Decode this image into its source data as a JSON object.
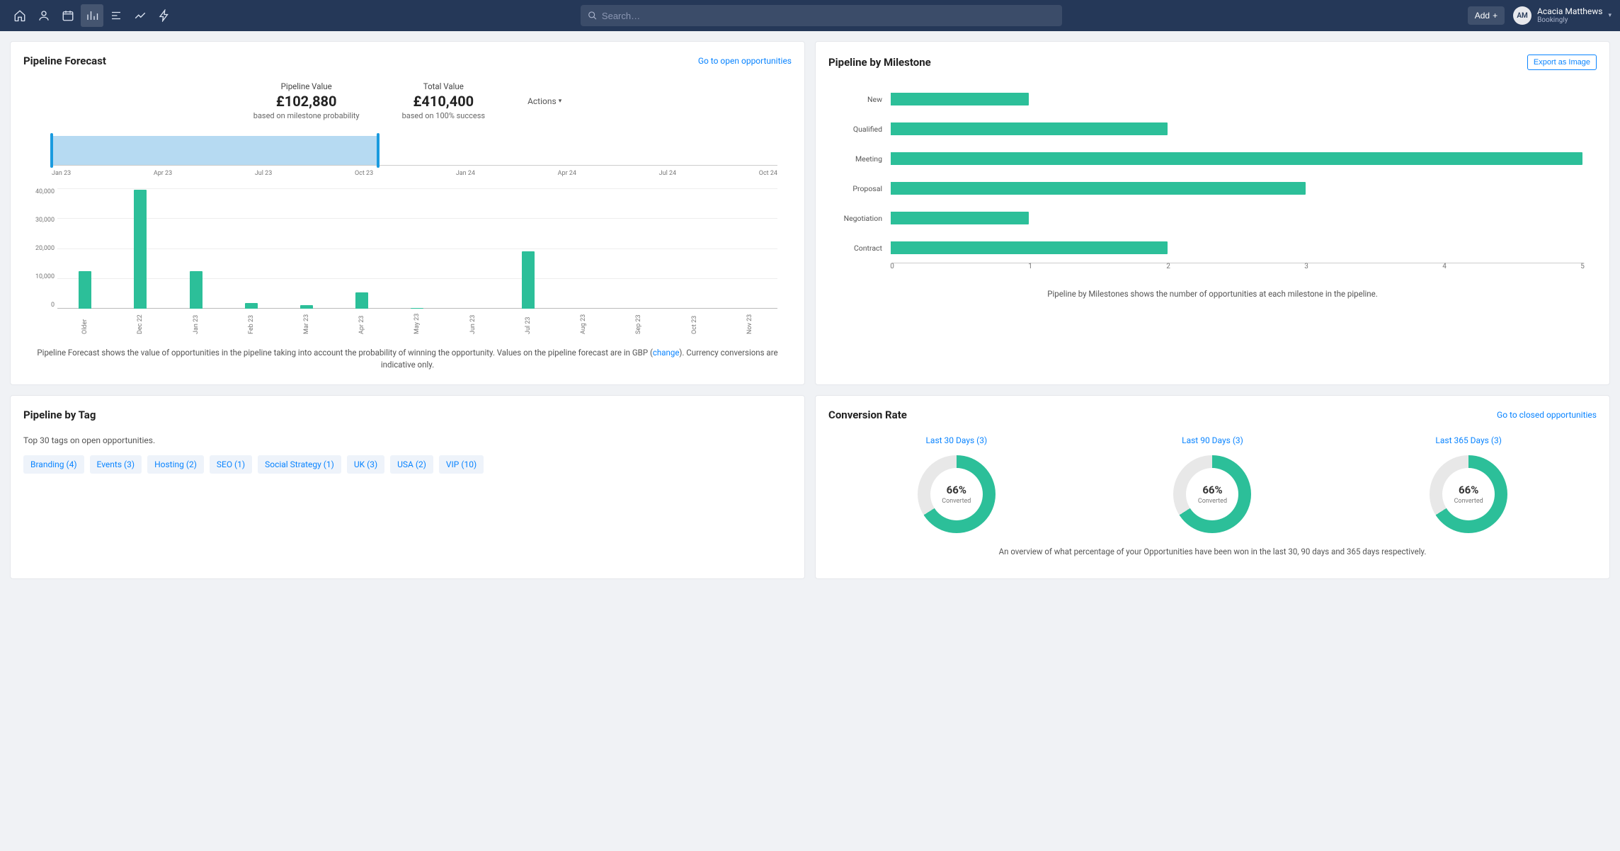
{
  "topbar": {
    "search_placeholder": "Search…",
    "add_label": "Add",
    "user": {
      "initials": "AM",
      "name": "Acacia Matthews",
      "org": "Bookingly"
    }
  },
  "colors": {
    "primary_accent": "#0a84ff",
    "topbar_bg": "#253858",
    "chart_green": "#2cbf99",
    "brush_fill": "#b6daf2",
    "brush_handle": "#1a9bdf",
    "donut_track": "#e8e8e8",
    "grid_line": "#eeeeee",
    "axis_line": "#bbbbbb"
  },
  "pipeline_forecast": {
    "title": "Pipeline Forecast",
    "link_label": "Go to open opportunities",
    "actions_label": "Actions",
    "kpi_pipeline": {
      "label": "Pipeline Value",
      "value": "£102,880",
      "sub": "based on milestone probability"
    },
    "kpi_total": {
      "label": "Total Value",
      "value": "£410,400",
      "sub": "based on 100% success"
    },
    "brush": {
      "xaxis": [
        "Jan 23",
        "Apr 23",
        "Jul 23",
        "Oct 23",
        "Jan 24",
        "Apr 24",
        "Jul 24",
        "Oct 24"
      ],
      "selection_start_pct": 0,
      "selection_end_pct": 45
    },
    "bar_chart": {
      "type": "bar",
      "ylim": [
        0,
        45000
      ],
      "yticks": [
        40000,
        30000,
        20000,
        10000,
        0
      ],
      "ytick_labels": [
        "40,000",
        "30,000",
        "20,000",
        "10,000",
        "0"
      ],
      "bar_color": "#2cbf99",
      "bars": [
        {
          "label": "Older",
          "value": 14000
        },
        {
          "label": "Dec 22",
          "value": 44500
        },
        {
          "label": "Jan 23",
          "value": 14000
        },
        {
          "label": "Feb 23",
          "value": 2000
        },
        {
          "label": "Mar 23",
          "value": 1200
        },
        {
          "label": "Apr 23",
          "value": 6000
        },
        {
          "label": "May 23",
          "value": 200
        },
        {
          "label": "Jun 23",
          "value": 0
        },
        {
          "label": "Jul 23",
          "value": 21500
        },
        {
          "label": "Aug 23",
          "value": 0
        },
        {
          "label": "Sep 23",
          "value": 0
        },
        {
          "label": "Oct 23",
          "value": 0
        },
        {
          "label": "Nov 23",
          "value": 0
        }
      ]
    },
    "caption_prefix": "Pipeline Forecast shows the value of opportunities in the pipeline taking into account the probability of winning the opportunity. Values on the pipeline forecast are in GBP (",
    "caption_link": "change",
    "caption_suffix": "). Currency conversions are indicative only."
  },
  "pipeline_milestone": {
    "title": "Pipeline by Milestone",
    "export_label": "Export as Image",
    "chart": {
      "type": "horizontal-bar",
      "xlim": [
        0,
        5
      ],
      "xticks": [
        0,
        1,
        2,
        3,
        4,
        5
      ],
      "bar_color": "#2cbf99",
      "rows": [
        {
          "label": "New",
          "value": 1
        },
        {
          "label": "Qualified",
          "value": 2
        },
        {
          "label": "Meeting",
          "value": 5
        },
        {
          "label": "Proposal",
          "value": 3
        },
        {
          "label": "Negotiation",
          "value": 1
        },
        {
          "label": "Contract",
          "value": 2
        }
      ]
    },
    "caption": "Pipeline by Milestones shows the number of opportunities at each milestone in the pipeline."
  },
  "pipeline_tag": {
    "title": "Pipeline by Tag",
    "subtitle": "Top 30 tags on open opportunities.",
    "tags": [
      "Branding (4)",
      "Events (3)",
      "Hosting (2)",
      "SEO (1)",
      "Social Strategy (1)",
      "UK (3)",
      "USA (2)",
      "VIP (10)"
    ]
  },
  "conversion": {
    "title": "Conversion Rate",
    "link_label": "Go to closed opportunities",
    "donut_color": "#2cbf99",
    "donut_track": "#e8e8e8",
    "converted_label": "Converted",
    "periods": [
      {
        "title": "Last 30 Days (3)",
        "pct": 66
      },
      {
        "title": "Last 90 Days (3)",
        "pct": 66
      },
      {
        "title": "Last 365 Days (3)",
        "pct": 66
      }
    ],
    "caption": "An overview of what percentage of your Opportunities have been won in the last 30, 90 days and 365 days respectively."
  }
}
